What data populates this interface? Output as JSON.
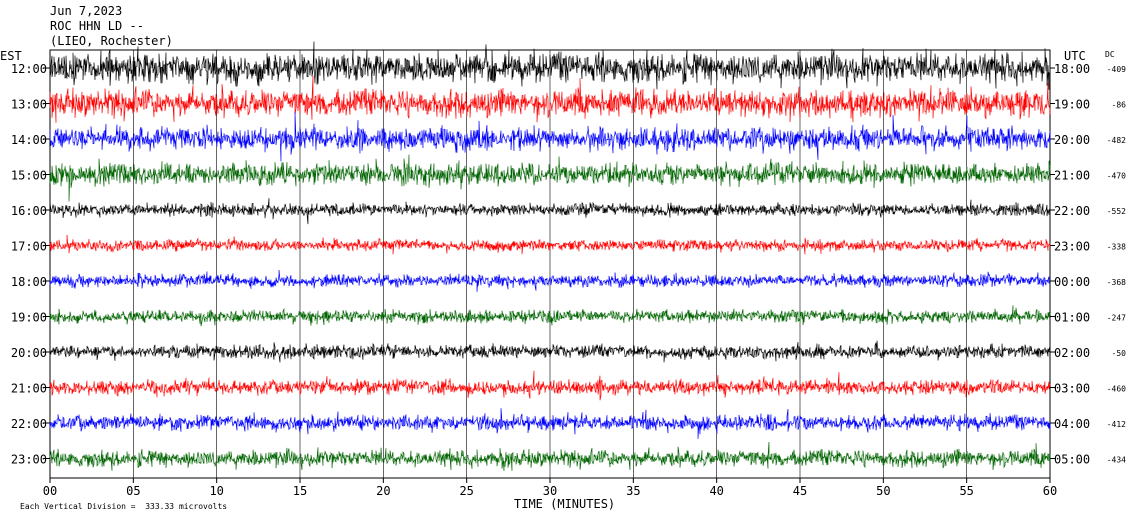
{
  "header": {
    "date": "Jun 7,2023",
    "station": "ROC HHN LD --",
    "location": "(LIEO, Rochester)"
  },
  "left_label": "EST",
  "right_label": "UTC",
  "dc_label": "DC",
  "xlabel": "TIME (MINUTES)",
  "footnote": "Each Vertical Division =  333.33 microvolts",
  "colors": {
    "black": "#000000",
    "red": "#ff0000",
    "blue": "#0000ff",
    "green": "#006400",
    "grid": "#000000"
  },
  "chart_data": {
    "type": "line",
    "subtype": "helicorder",
    "x": {
      "label": "TIME (MINUTES)",
      "range": [
        0,
        60
      ],
      "ticks": [
        "00",
        "05",
        "10",
        "15",
        "20",
        "25",
        "30",
        "35",
        "40",
        "45",
        "50",
        "55",
        "60"
      ],
      "grid": true
    },
    "rows": [
      {
        "est": "12:00",
        "utc": "18:00",
        "dc": "-409",
        "color": "black",
        "amplitude": 1.0
      },
      {
        "est": "13:00",
        "utc": "19:00",
        "dc": "-86",
        "color": "red",
        "amplitude": 0.9
      },
      {
        "est": "14:00",
        "utc": "20:00",
        "dc": "-482",
        "color": "blue",
        "amplitude": 0.75
      },
      {
        "est": "15:00",
        "utc": "21:00",
        "dc": "-470",
        "color": "green",
        "amplitude": 0.7
      },
      {
        "est": "16:00",
        "utc": "22:00",
        "dc": "-552",
        "color": "black",
        "amplitude": 0.4
      },
      {
        "est": "17:00",
        "utc": "23:00",
        "dc": "-338",
        "color": "red",
        "amplitude": 0.38
      },
      {
        "est": "18:00",
        "utc": "00:00",
        "dc": "-368",
        "color": "blue",
        "amplitude": 0.4
      },
      {
        "est": "19:00",
        "utc": "01:00",
        "dc": "-247",
        "color": "green",
        "amplitude": 0.42
      },
      {
        "est": "20:00",
        "utc": "02:00",
        "dc": "-50",
        "color": "black",
        "amplitude": 0.45
      },
      {
        "est": "21:00",
        "utc": "03:00",
        "dc": "-460",
        "color": "red",
        "amplitude": 0.5
      },
      {
        "est": "22:00",
        "utc": "04:00",
        "dc": "-412",
        "color": "blue",
        "amplitude": 0.5
      },
      {
        "est": "23:00",
        "utc": "05:00",
        "dc": "-434",
        "color": "green",
        "amplitude": 0.55
      }
    ]
  }
}
